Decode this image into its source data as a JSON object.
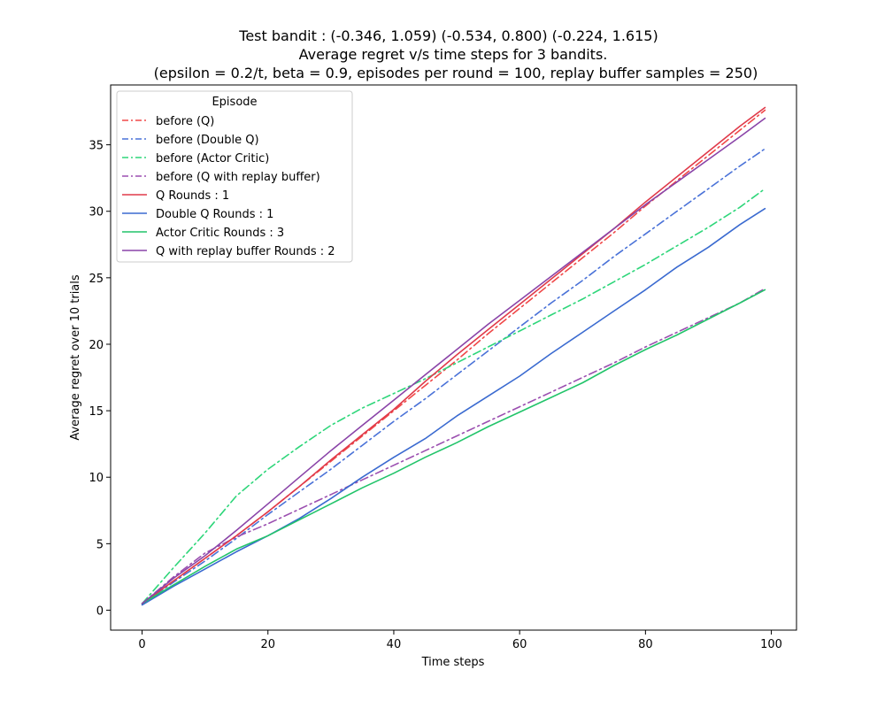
{
  "chart_data": {
    "type": "line",
    "title_lines": [
      "Test bandit : (-0.346, 1.059) (-0.534, 0.800) (-0.224, 1.615)",
      "Average regret v/s time steps for 3 bandits.",
      "(epsilon = 0.2/t, beta = 0.9, episodes per round = 100, replay buffer samples = 250)"
    ],
    "xlabel": "Time steps",
    "ylabel": "Average regret over 10 trials",
    "xlim": [
      -5,
      104
    ],
    "ylim": [
      -1.5,
      39.5
    ],
    "xticks": [
      0,
      20,
      40,
      60,
      80,
      100
    ],
    "yticks": [
      0,
      5,
      10,
      15,
      20,
      25,
      30,
      35
    ],
    "grid": false,
    "legend": {
      "title": "Episode",
      "placement": "top-left"
    },
    "series": [
      {
        "name": "before (Q)",
        "color": "#f04848",
        "dash": "dashdot",
        "x": [
          0,
          5,
          10,
          15,
          20,
          25,
          30,
          35,
          40,
          45,
          50,
          55,
          60,
          65,
          70,
          75,
          80,
          85,
          90,
          95,
          99
        ],
        "y": [
          0.5,
          2.2,
          3.9,
          5.6,
          7.4,
          9.3,
          11.2,
          13.1,
          15.0,
          16.9,
          18.8,
          20.8,
          22.7,
          24.6,
          26.5,
          28.4,
          30.4,
          32.3,
          34.2,
          36.1,
          37.6
        ]
      },
      {
        "name": "before (Double Q)",
        "color": "#4a72d8",
        "dash": "dashdot",
        "x": [
          0,
          5,
          10,
          15,
          20,
          25,
          30,
          35,
          40,
          45,
          50,
          55,
          60,
          65,
          70,
          75,
          80,
          85,
          90,
          95,
          99
        ],
        "y": [
          0.5,
          2.1,
          3.7,
          5.4,
          7.2,
          8.9,
          10.6,
          12.4,
          14.2,
          15.9,
          17.7,
          19.5,
          21.3,
          23.1,
          24.8,
          26.6,
          28.3,
          30.0,
          31.7,
          33.4,
          34.7
        ]
      },
      {
        "name": "before (Actor Critic)",
        "color": "#2ed67a",
        "dash": "dashdot",
        "x": [
          0,
          5,
          10,
          15,
          20,
          25,
          30,
          35,
          40,
          45,
          50,
          55,
          60,
          65,
          70,
          75,
          80,
          85,
          90,
          95,
          99
        ],
        "y": [
          0.5,
          3.2,
          5.8,
          8.6,
          10.6,
          12.3,
          13.9,
          15.2,
          16.3,
          17.4,
          18.6,
          19.8,
          21.0,
          22.2,
          23.4,
          24.7,
          26.0,
          27.4,
          28.8,
          30.3,
          31.7
        ]
      },
      {
        "name": "before (Q with replay buffer)",
        "color": "#9b4fb0",
        "dash": "dashdot",
        "x": [
          0,
          5,
          10,
          15,
          20,
          25,
          30,
          35,
          40,
          45,
          50,
          55,
          60,
          65,
          70,
          75,
          80,
          85,
          90,
          95,
          99
        ],
        "y": [
          0.5,
          2.5,
          4.3,
          5.5,
          6.5,
          7.6,
          8.7,
          9.8,
          10.9,
          12.0,
          13.1,
          14.2,
          15.3,
          16.4,
          17.5,
          18.6,
          19.8,
          20.9,
          22.0,
          23.1,
          24.2
        ]
      },
      {
        "name": "Q Rounds : 1",
        "color": "#e03a4a",
        "dash": "solid",
        "x": [
          0,
          5,
          10,
          15,
          20,
          25,
          30,
          35,
          40,
          45,
          50,
          55,
          60,
          65,
          70,
          75,
          80,
          85,
          90,
          95,
          99
        ],
        "y": [
          0.5,
          2.2,
          3.9,
          5.6,
          7.4,
          9.3,
          11.3,
          13.2,
          15.1,
          17.2,
          19.2,
          21.1,
          23.0,
          24.9,
          26.8,
          28.7,
          30.7,
          32.6,
          34.5,
          36.4,
          37.8
        ]
      },
      {
        "name": "Double Q Rounds : 1",
        "color": "#3a6ad0",
        "dash": "solid",
        "x": [
          0,
          5,
          10,
          15,
          20,
          25,
          30,
          35,
          40,
          45,
          50,
          55,
          60,
          65,
          70,
          75,
          80,
          85,
          90,
          95,
          99
        ],
        "y": [
          0.4,
          1.8,
          3.1,
          4.4,
          5.6,
          6.9,
          8.4,
          10.0,
          11.5,
          12.9,
          14.6,
          16.1,
          17.6,
          19.3,
          20.9,
          22.5,
          24.1,
          25.8,
          27.3,
          29.0,
          30.2
        ]
      },
      {
        "name": "Actor Critic Rounds : 3",
        "color": "#22c46a",
        "dash": "solid",
        "x": [
          0,
          5,
          10,
          15,
          20,
          25,
          30,
          35,
          40,
          45,
          50,
          55,
          60,
          65,
          70,
          75,
          80,
          85,
          90,
          95,
          99
        ],
        "y": [
          0.5,
          1.9,
          3.3,
          4.6,
          5.6,
          6.8,
          8.0,
          9.2,
          10.3,
          11.5,
          12.6,
          13.8,
          14.9,
          16.0,
          17.1,
          18.4,
          19.6,
          20.7,
          21.9,
          23.1,
          24.1
        ]
      },
      {
        "name": "Q with replay buffer Rounds : 2",
        "color": "#8a44a8",
        "dash": "solid",
        "x": [
          0,
          5,
          10,
          15,
          20,
          25,
          30,
          35,
          40,
          45,
          50,
          55,
          60,
          65,
          70,
          75,
          80,
          85,
          90,
          95,
          99
        ],
        "y": [
          0.5,
          2.4,
          4.1,
          6.0,
          8.0,
          10.0,
          12.0,
          13.9,
          15.8,
          17.7,
          19.6,
          21.5,
          23.3,
          25.1,
          26.9,
          28.7,
          30.5,
          32.2,
          33.9,
          35.6,
          37.0
        ]
      }
    ]
  }
}
